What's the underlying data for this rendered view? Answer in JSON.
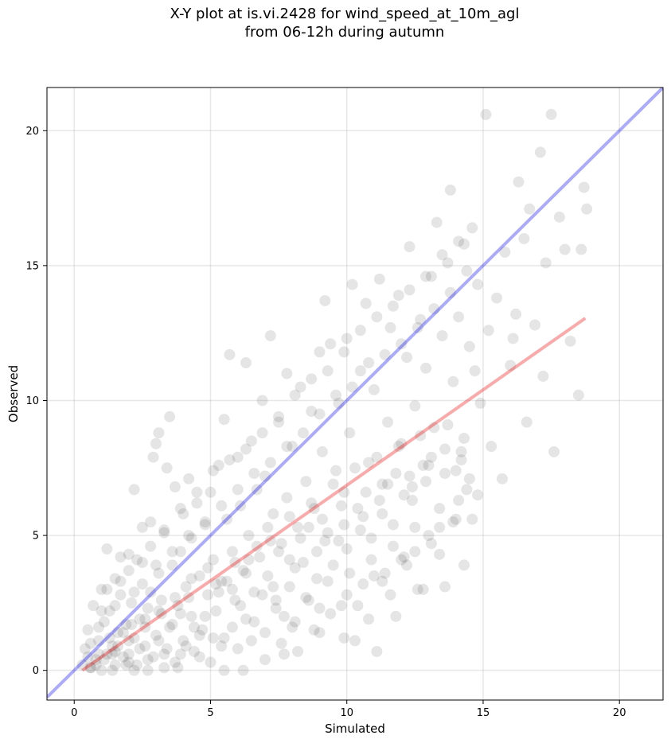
{
  "chart_data": {
    "type": "scatter",
    "title_lines": [
      "X-Y plot at is.vi.2428 for wind_speed_at_10m_agl",
      "from 06-12h during autumn"
    ],
    "xlabel": "Simulated",
    "ylabel": "Observed",
    "xlim": [
      -1.0,
      21.6
    ],
    "ylim": [
      -1.1,
      21.6
    ],
    "xticks": [
      0,
      5,
      10,
      15,
      20
    ],
    "yticks": [
      0,
      5,
      10,
      15,
      20
    ],
    "grid": true,
    "point_color": "#000000",
    "point_opacity": 0.1,
    "points": [
      [
        0.3,
        0.2
      ],
      [
        0.4,
        0.8
      ],
      [
        0.5,
        1.5
      ],
      [
        0.6,
        0.1
      ],
      [
        0.7,
        2.4
      ],
      [
        0.8,
        0.4
      ],
      [
        0.9,
        1.1
      ],
      [
        1.0,
        3.0
      ],
      [
        1.0,
        0.0
      ],
      [
        1.1,
        1.8
      ],
      [
        1.2,
        0.6
      ],
      [
        1.2,
        4.5
      ],
      [
        1.3,
        2.2
      ],
      [
        1.4,
        0.9
      ],
      [
        1.5,
        3.4
      ],
      [
        1.5,
        0.2
      ],
      [
        1.6,
        1.4
      ],
      [
        1.7,
        4.2
      ],
      [
        1.7,
        2.8
      ],
      [
        1.8,
        0.5
      ],
      [
        1.9,
        1.7
      ],
      [
        2.0,
        3.7
      ],
      [
        2.0,
        0.3
      ],
      [
        2.1,
        2.5
      ],
      [
        2.2,
        6.7
      ],
      [
        2.2,
        1.2
      ],
      [
        2.3,
        4.1
      ],
      [
        2.4,
        0.8
      ],
      [
        2.5,
        3.2
      ],
      [
        2.5,
        5.3
      ],
      [
        2.6,
        1.9
      ],
      [
        2.7,
        0.4
      ],
      [
        2.8,
        2.9
      ],
      [
        2.8,
        4.6
      ],
      [
        2.9,
        7.9
      ],
      [
        3.0,
        1.3
      ],
      [
        3.0,
        8.4
      ],
      [
        3.1,
        3.6
      ],
      [
        3.1,
        8.8
      ],
      [
        3.2,
        2.1
      ],
      [
        3.3,
        0.6
      ],
      [
        3.3,
        5.1
      ],
      [
        3.4,
        7.5
      ],
      [
        3.5,
        9.4
      ],
      [
        3.5,
        1.6
      ],
      [
        3.6,
        3.9
      ],
      [
        3.7,
        6.8
      ],
      [
        3.8,
        2.4
      ],
      [
        3.8,
        0.1
      ],
      [
        3.9,
        4.4
      ],
      [
        4.0,
        5.8
      ],
      [
        4.0,
        1.1
      ],
      [
        4.1,
        3.1
      ],
      [
        4.2,
        7.1
      ],
      [
        4.3,
        2.0
      ],
      [
        4.3,
        4.9
      ],
      [
        4.4,
        0.7
      ],
      [
        4.5,
        6.2
      ],
      [
        4.6,
        3.5
      ],
      [
        4.7,
        1.5
      ],
      [
        4.8,
        5.4
      ],
      [
        4.9,
        2.8
      ],
      [
        5.0,
        6.6
      ],
      [
        5.0,
        0.3
      ],
      [
        5.1,
        4.1
      ],
      [
        5.2,
        2.2
      ],
      [
        5.3,
        7.6
      ],
      [
        5.4,
        3.3
      ],
      [
        5.5,
        9.3
      ],
      [
        5.5,
        1.2
      ],
      [
        5.6,
        5.6
      ],
      [
        5.7,
        11.7
      ],
      [
        5.8,
        4.4
      ],
      [
        5.9,
        2.6
      ],
      [
        6.0,
        7.9
      ],
      [
        6.0,
        0.8
      ],
      [
        6.1,
        6.1
      ],
      [
        6.2,
        3.7
      ],
      [
        6.3,
        11.4
      ],
      [
        6.3,
        1.9
      ],
      [
        6.4,
        5.0
      ],
      [
        6.5,
        8.5
      ],
      [
        6.6,
        2.9
      ],
      [
        6.7,
        6.7
      ],
      [
        6.8,
        4.2
      ],
      [
        6.9,
        10.0
      ],
      [
        7.0,
        1.4
      ],
      [
        7.0,
        7.2
      ],
      [
        7.1,
        3.5
      ],
      [
        7.2,
        12.4
      ],
      [
        7.3,
        5.8
      ],
      [
        7.4,
        2.3
      ],
      [
        7.5,
        9.2
      ],
      [
        7.6,
        4.7
      ],
      [
        7.7,
        0.6
      ],
      [
        7.8,
        11.0
      ],
      [
        7.8,
        6.4
      ],
      [
        7.9,
        3.1
      ],
      [
        8.0,
        8.3
      ],
      [
        8.1,
        1.8
      ],
      [
        8.2,
        5.3
      ],
      [
        8.3,
        10.5
      ],
      [
        8.4,
        4.0
      ],
      [
        8.5,
        7.0
      ],
      [
        8.6,
        2.6
      ],
      [
        8.7,
        9.6
      ],
      [
        8.8,
        6.0
      ],
      [
        8.9,
        3.4
      ],
      [
        9.0,
        11.8
      ],
      [
        9.0,
        1.4
      ],
      [
        9.1,
        8.1
      ],
      [
        9.2,
        13.7
      ],
      [
        9.3,
        5.1
      ],
      [
        9.4,
        12.1
      ],
      [
        9.5,
        3.9
      ],
      [
        9.6,
        7.4
      ],
      [
        9.7,
        9.9
      ],
      [
        9.8,
        2.4
      ],
      [
        9.9,
        6.6
      ],
      [
        10.0,
        12.3
      ],
      [
        10.0,
        4.5
      ],
      [
        10.1,
        8.8
      ],
      [
        10.2,
        14.3
      ],
      [
        10.3,
        1.1
      ],
      [
        10.4,
        6.0
      ],
      [
        10.5,
        11.1
      ],
      [
        10.6,
        3.2
      ],
      [
        10.7,
        13.6
      ],
      [
        10.8,
        7.7
      ],
      [
        10.9,
        4.9
      ],
      [
        11.0,
        10.4
      ],
      [
        11.1,
        0.7
      ],
      [
        11.2,
        14.5
      ],
      [
        11.3,
        6.9
      ],
      [
        11.4,
        3.6
      ],
      [
        11.5,
        9.2
      ],
      [
        11.6,
        12.7
      ],
      [
        11.7,
        5.4
      ],
      [
        11.8,
        2.0
      ],
      [
        11.9,
        13.9
      ],
      [
        12.0,
        8.4
      ],
      [
        12.1,
        4.2
      ],
      [
        12.2,
        11.6
      ],
      [
        12.3,
        15.7
      ],
      [
        12.4,
        6.3
      ],
      [
        12.5,
        9.8
      ],
      [
        12.6,
        3.0
      ],
      [
        12.7,
        13.0
      ],
      [
        12.8,
        7.6
      ],
      [
        12.9,
        11.2
      ],
      [
        13.0,
        5.0
      ],
      [
        13.1,
        14.6
      ],
      [
        13.2,
        9.0
      ],
      [
        13.3,
        16.6
      ],
      [
        13.4,
        4.3
      ],
      [
        13.5,
        12.4
      ],
      [
        13.6,
        7.3
      ],
      [
        13.7,
        15.1
      ],
      [
        13.8,
        17.8
      ],
      [
        13.9,
        10.7
      ],
      [
        14.0,
        5.6
      ],
      [
        14.1,
        13.1
      ],
      [
        14.2,
        8.1
      ],
      [
        14.3,
        15.8
      ],
      [
        14.4,
        6.7
      ],
      [
        14.5,
        12.0
      ],
      [
        14.6,
        16.4
      ],
      [
        14.7,
        11.1
      ],
      [
        14.8,
        14.3
      ],
      [
        14.9,
        9.9
      ],
      [
        15.1,
        20.6
      ],
      [
        15.2,
        12.6
      ],
      [
        15.3,
        8.3
      ],
      [
        15.5,
        13.8
      ],
      [
        15.7,
        7.1
      ],
      [
        15.8,
        15.5
      ],
      [
        16.0,
        11.3
      ],
      [
        16.1,
        12.3
      ],
      [
        16.2,
        13.2
      ],
      [
        16.3,
        18.1
      ],
      [
        16.5,
        16.0
      ],
      [
        16.6,
        9.2
      ],
      [
        16.7,
        17.1
      ],
      [
        16.9,
        12.8
      ],
      [
        17.1,
        19.2
      ],
      [
        17.2,
        10.9
      ],
      [
        17.3,
        15.1
      ],
      [
        17.5,
        20.6
      ],
      [
        17.6,
        8.1
      ],
      [
        17.8,
        16.8
      ],
      [
        18.0,
        15.6
      ],
      [
        18.2,
        12.2
      ],
      [
        18.5,
        10.2
      ],
      [
        18.6,
        15.6
      ],
      [
        18.7,
        17.9
      ],
      [
        18.8,
        17.1
      ],
      [
        0.5,
        0.5
      ],
      [
        0.6,
        1.0
      ],
      [
        0.8,
        0.2
      ],
      [
        0.9,
        1.6
      ],
      [
        1.1,
        0.4
      ],
      [
        1.3,
        1.2
      ],
      [
        1.4,
        0.0
      ],
      [
        1.6,
        0.9
      ],
      [
        1.8,
        1.4
      ],
      [
        2.0,
        0.6
      ],
      [
        2.1,
        1.7
      ],
      [
        2.3,
        0.2
      ],
      [
        2.4,
        1.9
      ],
      [
        2.6,
        0.9
      ],
      [
        2.7,
        2.3
      ],
      [
        2.9,
        0.5
      ],
      [
        3.1,
        1.1
      ],
      [
        3.2,
        2.6
      ],
      [
        3.4,
        0.8
      ],
      [
        3.6,
        1.7
      ],
      [
        3.7,
        0.3
      ],
      [
        3.9,
        2.1
      ],
      [
        4.1,
        0.9
      ],
      [
        4.2,
        2.7
      ],
      [
        4.4,
        1.6
      ],
      [
        4.6,
        0.5
      ],
      [
        4.8,
        2.0
      ],
      [
        4.9,
        3.8
      ],
      [
        5.1,
        1.2
      ],
      [
        5.3,
        2.9
      ],
      [
        5.4,
        0.9
      ],
      [
        5.6,
        3.3
      ],
      [
        5.8,
        1.6
      ],
      [
        5.9,
        4.0
      ],
      [
        6.1,
        2.4
      ],
      [
        6.3,
        3.6
      ],
      [
        6.5,
        1.1
      ],
      [
        6.7,
        4.6
      ],
      [
        6.9,
        2.8
      ],
      [
        7.1,
        5.3
      ],
      [
        7.3,
        3.1
      ],
      [
        7.5,
        4.4
      ],
      [
        7.7,
        2.0
      ],
      [
        7.9,
        5.7
      ],
      [
        8.1,
        3.8
      ],
      [
        8.3,
        4.9
      ],
      [
        8.5,
        2.7
      ],
      [
        8.7,
        6.2
      ],
      [
        8.9,
        4.4
      ],
      [
        9.1,
        5.6
      ],
      [
        9.3,
        3.3
      ],
      [
        9.5,
        6.9
      ],
      [
        9.7,
        4.8
      ],
      [
        9.9,
        5.4
      ],
      [
        10.1,
        3.6
      ],
      [
        10.3,
        7.5
      ],
      [
        10.5,
        5.2
      ],
      [
        10.7,
        6.6
      ],
      [
        10.9,
        4.1
      ],
      [
        11.1,
        7.9
      ],
      [
        11.3,
        5.8
      ],
      [
        11.5,
        6.9
      ],
      [
        11.7,
        4.6
      ],
      [
        11.9,
        8.3
      ],
      [
        12.1,
        6.5
      ],
      [
        12.3,
        7.2
      ],
      [
        12.5,
        5.3
      ],
      [
        12.7,
        8.7
      ],
      [
        12.9,
        7.0
      ],
      [
        13.1,
        7.9
      ],
      [
        13.4,
        6.0
      ],
      [
        13.7,
        9.1
      ],
      [
        14.0,
        7.4
      ],
      [
        14.3,
        8.6
      ],
      [
        14.5,
        7.1
      ],
      [
        1.0,
        2.2
      ],
      [
        1.2,
        3.0
      ],
      [
        1.5,
        2.4
      ],
      [
        1.7,
        3.3
      ],
      [
        2.0,
        4.3
      ],
      [
        2.2,
        2.9
      ],
      [
        2.5,
        4.0
      ],
      [
        2.8,
        5.5
      ],
      [
        3.0,
        3.9
      ],
      [
        3.3,
        5.2
      ],
      [
        3.6,
        4.4
      ],
      [
        3.9,
        6.0
      ],
      [
        4.2,
        5.0
      ],
      [
        4.5,
        6.6
      ],
      [
        4.8,
        5.5
      ],
      [
        5.1,
        7.4
      ],
      [
        5.4,
        6.1
      ],
      [
        5.7,
        7.8
      ],
      [
        6.0,
        6.7
      ],
      [
        6.3,
        8.2
      ],
      [
        6.6,
        7.3
      ],
      [
        6.9,
        8.8
      ],
      [
        7.2,
        7.7
      ],
      [
        7.5,
        9.4
      ],
      [
        7.8,
        8.3
      ],
      [
        8.1,
        10.2
      ],
      [
        8.4,
        8.8
      ],
      [
        8.7,
        10.8
      ],
      [
        9.0,
        9.5
      ],
      [
        9.3,
        11.1
      ],
      [
        9.6,
        10.2
      ],
      [
        9.9,
        11.8
      ],
      [
        10.2,
        10.5
      ],
      [
        10.5,
        12.6
      ],
      [
        10.8,
        11.4
      ],
      [
        11.1,
        13.1
      ],
      [
        11.4,
        11.7
      ],
      [
        11.7,
        13.5
      ],
      [
        12.0,
        12.1
      ],
      [
        12.3,
        14.1
      ],
      [
        12.6,
        12.7
      ],
      [
        12.9,
        14.6
      ],
      [
        13.2,
        13.4
      ],
      [
        13.5,
        15.4
      ],
      [
        13.8,
        14.0
      ],
      [
        14.1,
        15.9
      ],
      [
        14.4,
        14.8
      ],
      [
        5.5,
        0.0
      ],
      [
        6.2,
        0.0
      ],
      [
        7.0,
        0.4
      ],
      [
        7.6,
        1.0
      ],
      [
        8.2,
        0.7
      ],
      [
        8.8,
        1.5
      ],
      [
        9.4,
        2.1
      ],
      [
        9.9,
        1.2
      ],
      [
        10.4,
        2.4
      ],
      [
        10.8,
        1.9
      ],
      [
        11.3,
        3.3
      ],
      [
        11.6,
        2.8
      ],
      [
        12.2,
        3.9
      ],
      [
        12.5,
        4.4
      ],
      [
        12.8,
        3.0
      ],
      [
        13.1,
        4.7
      ],
      [
        13.4,
        5.3
      ],
      [
        13.6,
        3.1
      ],
      [
        13.9,
        5.5
      ],
      [
        14.1,
        6.3
      ],
      [
        14.3,
        3.9
      ],
      [
        14.6,
        5.6
      ],
      [
        14.8,
        6.5
      ],
      [
        12.0,
        4.1
      ],
      [
        11.0,
        3.5
      ],
      [
        10.0,
        2.8
      ],
      [
        9.0,
        2.3
      ],
      [
        8.0,
        1.6
      ],
      [
        7.4,
        2.6
      ],
      [
        6.6,
        1.8
      ],
      [
        5.2,
        3.2
      ],
      [
        4.6,
        1.3
      ],
      [
        3.9,
        0.6
      ],
      [
        3.3,
        0.1
      ],
      [
        2.7,
        0.0
      ],
      [
        2.2,
        0.0
      ],
      [
        1.9,
        0.2
      ],
      [
        1.4,
        0.6
      ],
      [
        0.9,
        0.6
      ],
      [
        0.6,
        0.1
      ],
      [
        5.8,
        3.0
      ],
      [
        6.4,
        4.1
      ],
      [
        7.2,
        4.8
      ],
      [
        7.9,
        4.1
      ],
      [
        8.6,
        5.3
      ],
      [
        9.2,
        4.8
      ],
      [
        9.8,
        6.1
      ],
      [
        10.6,
        5.7
      ],
      [
        11.2,
        6.3
      ],
      [
        11.8,
        7.3
      ],
      [
        12.4,
        6.8
      ],
      [
        13.0,
        7.6
      ],
      [
        13.6,
        8.2
      ],
      [
        14.2,
        7.8
      ],
      [
        4.3,
        3.4
      ],
      [
        3.7,
        2.7
      ],
      [
        3.1,
        2.2
      ],
      [
        2.6,
        1.6
      ],
      [
        2.0,
        1.1
      ],
      [
        1.5,
        0.7
      ]
    ],
    "lines": [
      {
        "name": "",
        "color": "#0000ee",
        "opacity": 0.33,
        "width": 4,
        "points": [
          [
            -1.0,
            -1.0
          ],
          [
            21.6,
            21.6
          ]
        ]
      },
      {
        "name": "",
        "color": "#ee0000",
        "opacity": 0.33,
        "width": 4,
        "points": [
          [
            0.3,
            0.0
          ],
          [
            18.75,
            13.05
          ]
        ]
      }
    ]
  }
}
